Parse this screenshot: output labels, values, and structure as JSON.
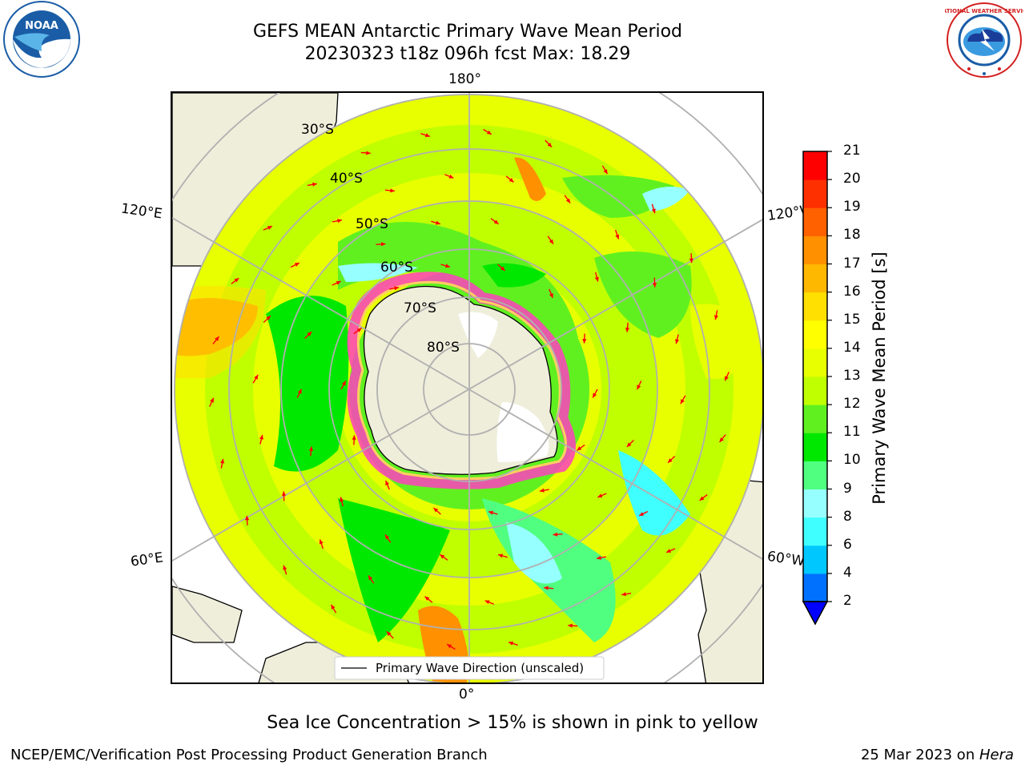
{
  "title_line1": "GEFS MEAN Antarctic Primary Wave Mean Period",
  "title_line2": "20230323 t18z 096h fcst   Max: 18.29",
  "logos": {
    "left": "NOAA",
    "right": "NATIONAL WEATHER SERVICE"
  },
  "map": {
    "projection": "south-polar-stereographic",
    "lon_labels": {
      "top": "180°",
      "bottom": "0°",
      "left_upper": "120°E",
      "left_lower": "60°E",
      "right_upper": "120°W",
      "right_lower": "60°W"
    },
    "lat_labels": [
      "30°S",
      "40°S",
      "50°S",
      "60°S",
      "70°S",
      "80°S"
    ],
    "legend_label": "Primary Wave Direction (unscaled)"
  },
  "colorbar": {
    "title": "Primary Wave Mean Period [s]",
    "ticks": [
      "21",
      "20",
      "19",
      "18",
      "17",
      "16",
      "15",
      "14",
      "13",
      "12",
      "11",
      "10",
      "9",
      "8",
      "6",
      "4",
      "2"
    ],
    "levels": [
      2,
      4,
      6,
      8,
      9,
      10,
      11,
      12,
      13,
      14,
      15,
      16,
      17,
      18,
      19,
      20,
      21
    ],
    "colors": [
      "#0070ff",
      "#00c8ff",
      "#40ffff",
      "#96ffff",
      "#50ff80",
      "#00e800",
      "#60f020",
      "#c0ff00",
      "#e8ff00",
      "#ffff00",
      "#ffe000",
      "#ffb800",
      "#ff9000",
      "#ff6000",
      "#ff3000",
      "#ff0000"
    ],
    "extend_color": "#0000ff"
  },
  "note": "Sea Ice Concentration > 15% is shown in pink to yellow",
  "footer_left": "NCEP/EMC/Verification Post Processing Product Generation Branch",
  "footer_right_prefix": "25 Mar 2023 on ",
  "footer_right_machine": "Hera"
}
